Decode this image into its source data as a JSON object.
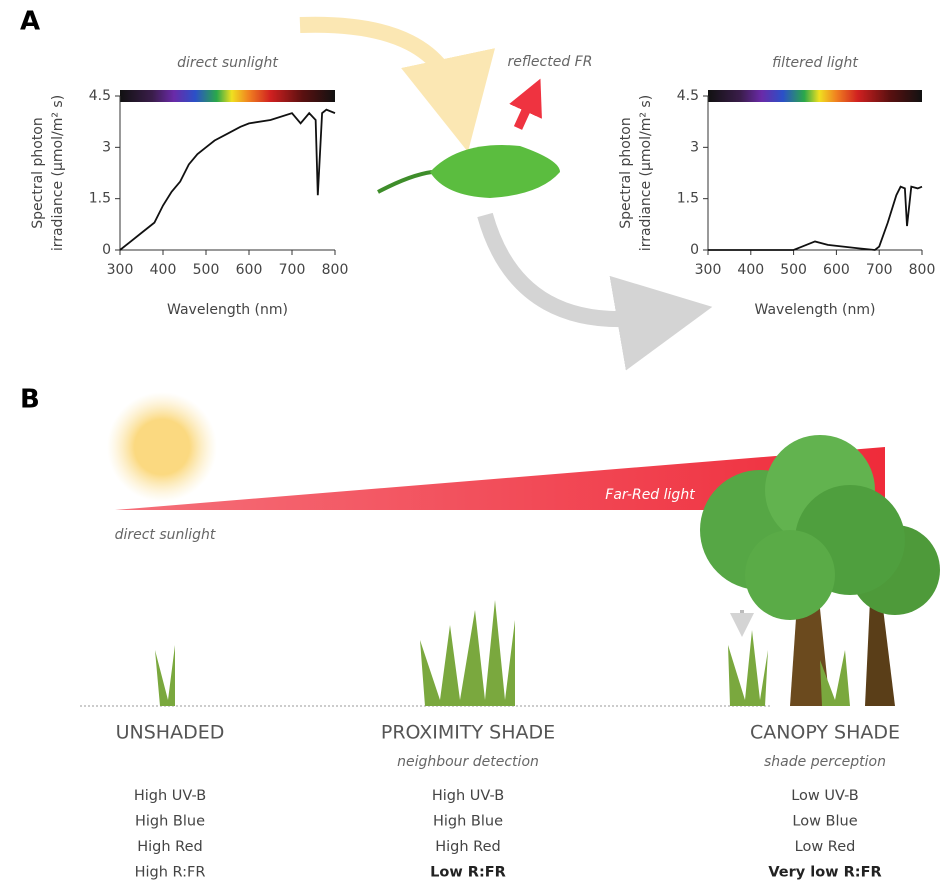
{
  "figure": {
    "panel_a": "A",
    "panel_b": "B",
    "reflected_fr": "reflected FR",
    "far_red": "Far-Red light",
    "direct_sunlight": "direct sunlight",
    "conditions": [
      {
        "name": "UNSHADED",
        "properties": [
          "High UV-B",
          "High Blue",
          "High Red",
          "High R:FR"
        ]
      },
      {
        "name": "PROXIMITY SHADE",
        "note": "neighbour detection",
        "properties": [
          "High UV-B",
          "High Blue",
          "High Red",
          "Low R:FR"
        ]
      },
      {
        "name": "CANOPY SHADE",
        "note": "shade perception",
        "properties": [
          "Low UV-B",
          "Low Blue",
          "Low Red",
          "Very low R:FR"
        ]
      }
    ]
  },
  "chart_data": [
    {
      "type": "line",
      "title": "direct sunlight",
      "xlabel": "Wavelength (nm)",
      "ylabel": [
        "Spectral photon",
        "irradiance (μmol/m² s)"
      ],
      "x": [
        300,
        320,
        350,
        380,
        400,
        420,
        440,
        460,
        480,
        500,
        520,
        550,
        580,
        600,
        650,
        700,
        720,
        740,
        755,
        760,
        770,
        780,
        800
      ],
      "values": [
        0,
        0.2,
        0.5,
        0.8,
        1.3,
        1.7,
        2.0,
        2.5,
        2.8,
        3.0,
        3.2,
        3.4,
        3.6,
        3.7,
        3.8,
        4.0,
        3.7,
        4.0,
        3.8,
        1.6,
        4.0,
        4.1,
        4.0
      ],
      "color": "#111111",
      "xlim": [
        300,
        800
      ],
      "xticks": [
        300,
        400,
        500,
        600,
        700,
        800
      ],
      "ylim": [
        0,
        4.5
      ],
      "yticks": [
        0,
        1.5,
        3,
        4.5
      ]
    },
    {
      "type": "line",
      "title": "filtered light",
      "xlabel": "Wavelength (nm)",
      "ylabel": [
        "Spectral photon",
        "irradiance (μmol/m² s)"
      ],
      "x": [
        300,
        500,
        520,
        550,
        580,
        650,
        690,
        700,
        720,
        740,
        750,
        760,
        765,
        775,
        790,
        800
      ],
      "values": [
        0,
        0,
        0.1,
        0.25,
        0.15,
        0.05,
        0,
        0.1,
        0.8,
        1.6,
        1.85,
        1.8,
        0.7,
        1.85,
        1.8,
        1.85
      ],
      "color": "#111111",
      "xlim": [
        300,
        800
      ],
      "xticks": [
        300,
        400,
        500,
        600,
        700,
        800
      ],
      "ylim": [
        0,
        4.5
      ],
      "yticks": [
        0,
        1.5,
        3,
        4.5
      ]
    }
  ]
}
